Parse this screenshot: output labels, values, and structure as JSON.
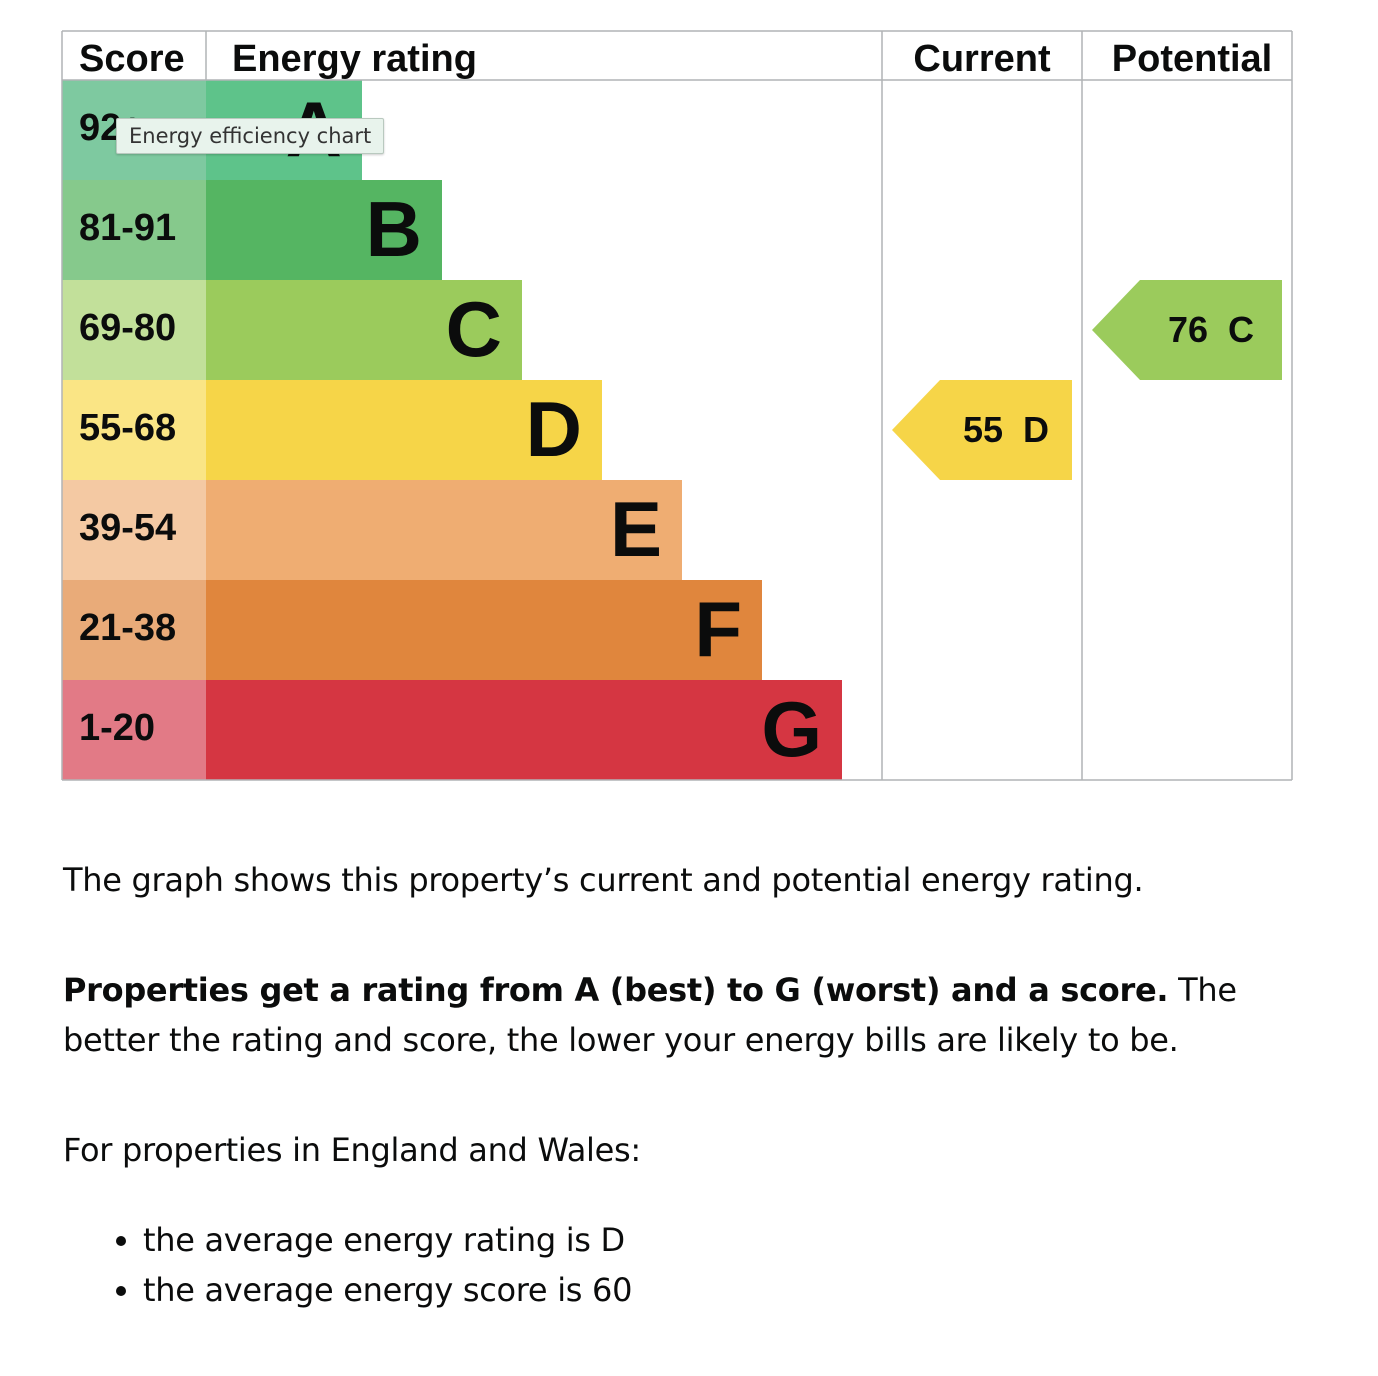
{
  "chart_data": {
    "type": "table",
    "headers": {
      "score": "Score",
      "rating": "Energy rating",
      "current": "Current",
      "potential": "Potential"
    },
    "bands": [
      {
        "letter": "A",
        "score_label": "92+",
        "color": "#5ec38a",
        "score_bg": "#7ec9a0"
      },
      {
        "letter": "B",
        "score_label": "81-91",
        "color": "#55b562",
        "score_bg": "#86c98c"
      },
      {
        "letter": "C",
        "score_label": "69-80",
        "color": "#9bcb5c",
        "score_bg": "#c2e09a"
      },
      {
        "letter": "D",
        "score_label": "55-68",
        "color": "#f6d548",
        "score_bg": "#fae585"
      },
      {
        "letter": "E",
        "score_label": "39-54",
        "color": "#efad72",
        "score_bg": "#f4c9a3"
      },
      {
        "letter": "F",
        "score_label": "21-38",
        "color": "#e0863d",
        "score_bg": "#e9ab79"
      },
      {
        "letter": "G",
        "score_label": "1-20",
        "color": "#d53642",
        "score_bg": "#e27a86"
      }
    ],
    "current": {
      "score": 55,
      "letter": "D",
      "color": "#f6d548"
    },
    "potential": {
      "score": 76,
      "letter": "C",
      "color": "#9bcb5c"
    }
  },
  "tooltip": "Energy efficiency chart",
  "paragraphs": {
    "p1": "The graph shows this property’s current and potential energy rating.",
    "p2_bold": "Properties get a rating from A (best) to G (worst) and a score.",
    "p2_rest": " The better the rating and score, the lower your energy bills are likely to be.",
    "p3": "For properties in England and Wales:"
  },
  "bullets": [
    "the average energy rating is D",
    "the average energy score is 60"
  ]
}
